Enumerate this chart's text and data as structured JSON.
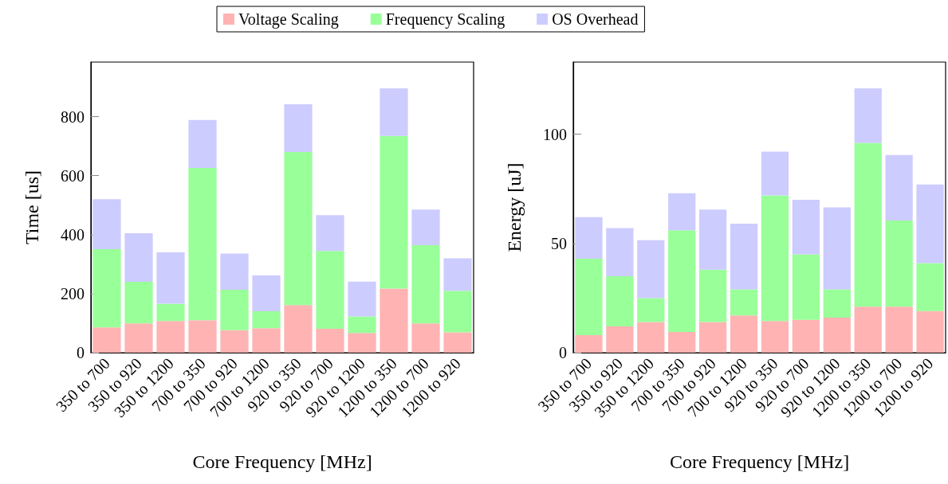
{
  "chart_data": [
    {
      "type": "bar",
      "stacked": true,
      "xlabel": "Core Frequency [MHz]",
      "ylabel": "Time [us]",
      "categories": [
        "350 to 700",
        "350 to 920",
        "350 to 1200",
        "700 to 350",
        "700 to 920",
        "700 to 1200",
        "920 to 350",
        "920 to 700",
        "920 to 1200",
        "1200 to 350",
        "1200 to 700",
        "1200 to 920"
      ],
      "series": [
        {
          "name": "Voltage Scaling",
          "color": "#ffb3b3",
          "values": [
            86,
            99,
            107,
            110,
            76,
            83,
            161,
            81,
            67,
            217,
            99,
            69
          ]
        },
        {
          "name": "Frequency Scaling",
          "color": "#99ff99",
          "values": [
            265,
            141,
            59,
            516,
            137,
            57,
            519,
            264,
            56,
            518,
            265,
            141
          ]
        },
        {
          "name": "OS Overhead",
          "color": "#ccccff",
          "values": [
            169,
            165,
            174,
            163,
            123,
            122,
            162,
            121,
            118,
            161,
            121,
            110
          ]
        }
      ],
      "ylim": [
        0,
        985
      ],
      "yticks": [
        0,
        200,
        400,
        600,
        800
      ],
      "grid": false,
      "legend": "top"
    },
    {
      "type": "bar",
      "stacked": true,
      "xlabel": "Core Frequency [MHz]",
      "ylabel": "Energy [uJ]",
      "categories": [
        "350 to 700",
        "350 to 920",
        "350 to 1200",
        "700 to 350",
        "700 to 920",
        "700 to 1200",
        "920 to 350",
        "920 to 700",
        "920 to 1200",
        "1200 to 350",
        "1200 to 700",
        "1200 to 920"
      ],
      "series": [
        {
          "color": "#ffb3b3",
          "values": [
            8,
            12,
            14,
            9.5,
            14,
            17,
            14.5,
            15,
            16,
            21,
            21,
            19
          ]
        },
        {
          "color": "#99ff99",
          "values": [
            35,
            23,
            11,
            46.5,
            24,
            12,
            57.5,
            30,
            13,
            75,
            39.5,
            22
          ]
        },
        {
          "color": "#ccccff",
          "values": [
            19,
            22,
            26.5,
            17,
            27.5,
            30,
            20,
            25,
            37.5,
            25,
            30,
            36
          ]
        }
      ],
      "ylim": [
        0,
        133
      ],
      "yticks": [
        0,
        50,
        100
      ],
      "grid": false
    }
  ]
}
